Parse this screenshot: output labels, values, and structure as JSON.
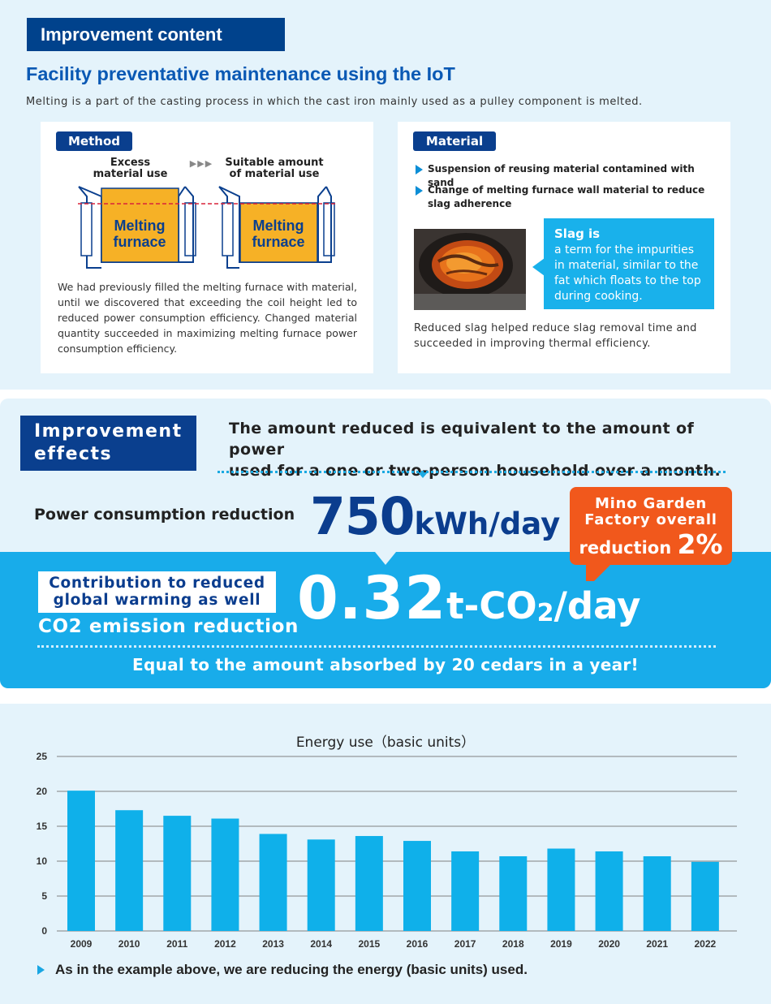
{
  "improvement_content": {
    "tag": "Improvement content",
    "subtitle": "Facility preventative maintenance using the IoT",
    "intro": "Melting is a part of the casting process in which the cast iron mainly used as a pulley component is melted."
  },
  "method": {
    "tag": "Method",
    "label_excess": [
      "Excess",
      "material use"
    ],
    "label_suitable": [
      "Suitable amount",
      "of  material use"
    ],
    "arrows": "▶▶▶",
    "furnace_label": [
      "Melting",
      "furnace"
    ],
    "text": "We had previously filled the melting furnace with material, until we discovered that exceeding the coil height led to reduced power consumption efficiency. Changed material quantity succeeded in maximizing melting furnace power consumption efficiency."
  },
  "material": {
    "tag": "Material",
    "bullet1": "Suspension of reusing material contamined with sand",
    "bullet2": "Change of melting furnace wall material to reduce slag adherence",
    "slag_title": "Slag is",
    "slag_desc": "a term for the impurities in material, similar to the fat which floats to the top during cooking.",
    "text": "Reduced slag helped reduce slag removal time and succeeded in improving thermal efficiency."
  },
  "effects": {
    "tag_line1": "Improvement",
    "tag_line2": "effects",
    "household_line1": "The amount reduced is equivalent to the amount of power",
    "household_line2": "used for a one or two-person household over a month.",
    "power_label": "Power consumption reduction",
    "power_value": "750",
    "power_unit": "kWh/day",
    "factory_line1": "Mino Garden",
    "factory_line2": "Factory overall",
    "factory_line3": "reduction",
    "factory_pct": "2%",
    "contrib_line1": "Contribution to reduced",
    "contrib_line2": "global warming as well",
    "co2_label": "CO2 emission reduction",
    "co2_value": "0.32",
    "co2_unit_a": "t-CO",
    "co2_unit_sub": "2",
    "co2_unit_b": "/day",
    "cedars": "Equal to the amount absorbed by 20 cedars in a year!"
  },
  "chart_data": {
    "type": "bar",
    "title": "Energy use（basic units）",
    "categories": [
      "2009",
      "2010",
      "2011",
      "2012",
      "2013",
      "2014",
      "2015",
      "2016",
      "2017",
      "2018",
      "2019",
      "2020",
      "2021",
      "2022"
    ],
    "values": [
      20.1,
      17.3,
      16.5,
      16.1,
      13.9,
      13.1,
      13.6,
      12.9,
      11.4,
      10.7,
      11.8,
      11.4,
      10.7,
      9.9
    ],
    "ylim": [
      0,
      25
    ],
    "yticks": [
      0,
      5,
      10,
      15,
      20,
      25
    ],
    "grid": true,
    "bar_color": "#0fb0ea"
  },
  "footnote": "As in the example above, we are reducing the energy (basic units) used.",
  "colors": {
    "navy": "#0a3f8e",
    "accent_blue": "#18acea",
    "orange": "#f1581c",
    "panel_bg": "#e4f3fb"
  }
}
